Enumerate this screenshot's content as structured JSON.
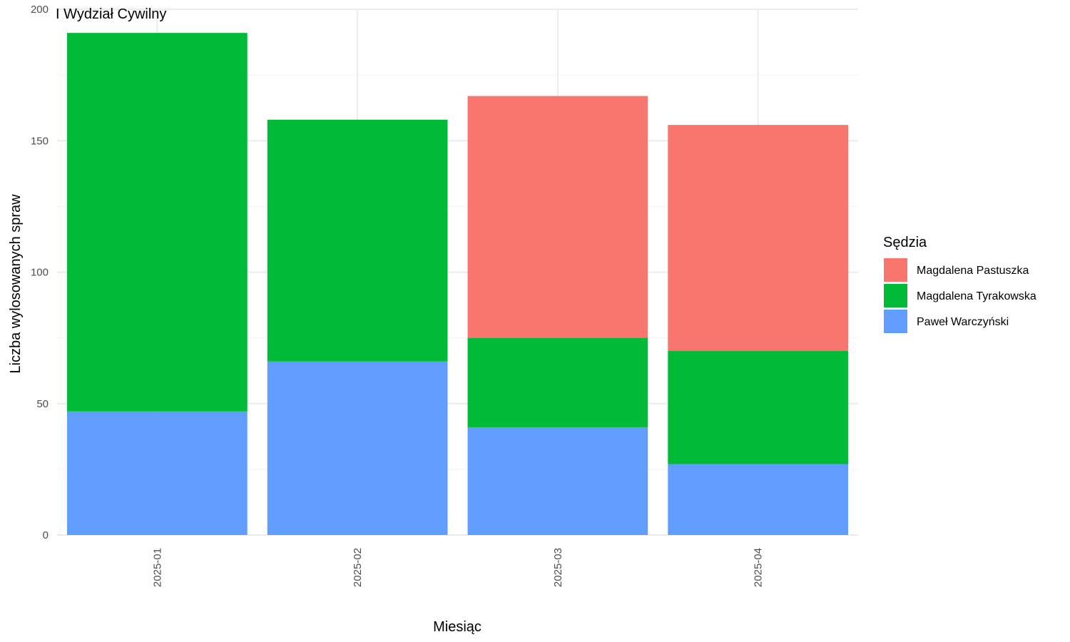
{
  "chart_data": {
    "type": "bar",
    "stacked": true,
    "title": "I Wydział Cywilny",
    "xlabel": "Miesiąc",
    "ylabel": "Liczba wylosowanych spraw",
    "ylim": [
      0,
      200
    ],
    "yticks": [
      0,
      50,
      100,
      150,
      200
    ],
    "categories": [
      "2025-01",
      "2025-02",
      "2025-03",
      "2025-04"
    ],
    "legend": {
      "title": "Sędzia",
      "placement": "right"
    },
    "grid": true,
    "series": [
      {
        "name": "Magdalena Pastuszka",
        "color": "#F8766D",
        "values": [
          0,
          0,
          92,
          86
        ]
      },
      {
        "name": "Magdalena Tyrakowska",
        "color": "#00BA38",
        "values": [
          144,
          92,
          34,
          43
        ]
      },
      {
        "name": "Paweł Warczyński",
        "color": "#619CFF",
        "values": [
          47,
          66,
          41,
          27
        ]
      }
    ]
  }
}
